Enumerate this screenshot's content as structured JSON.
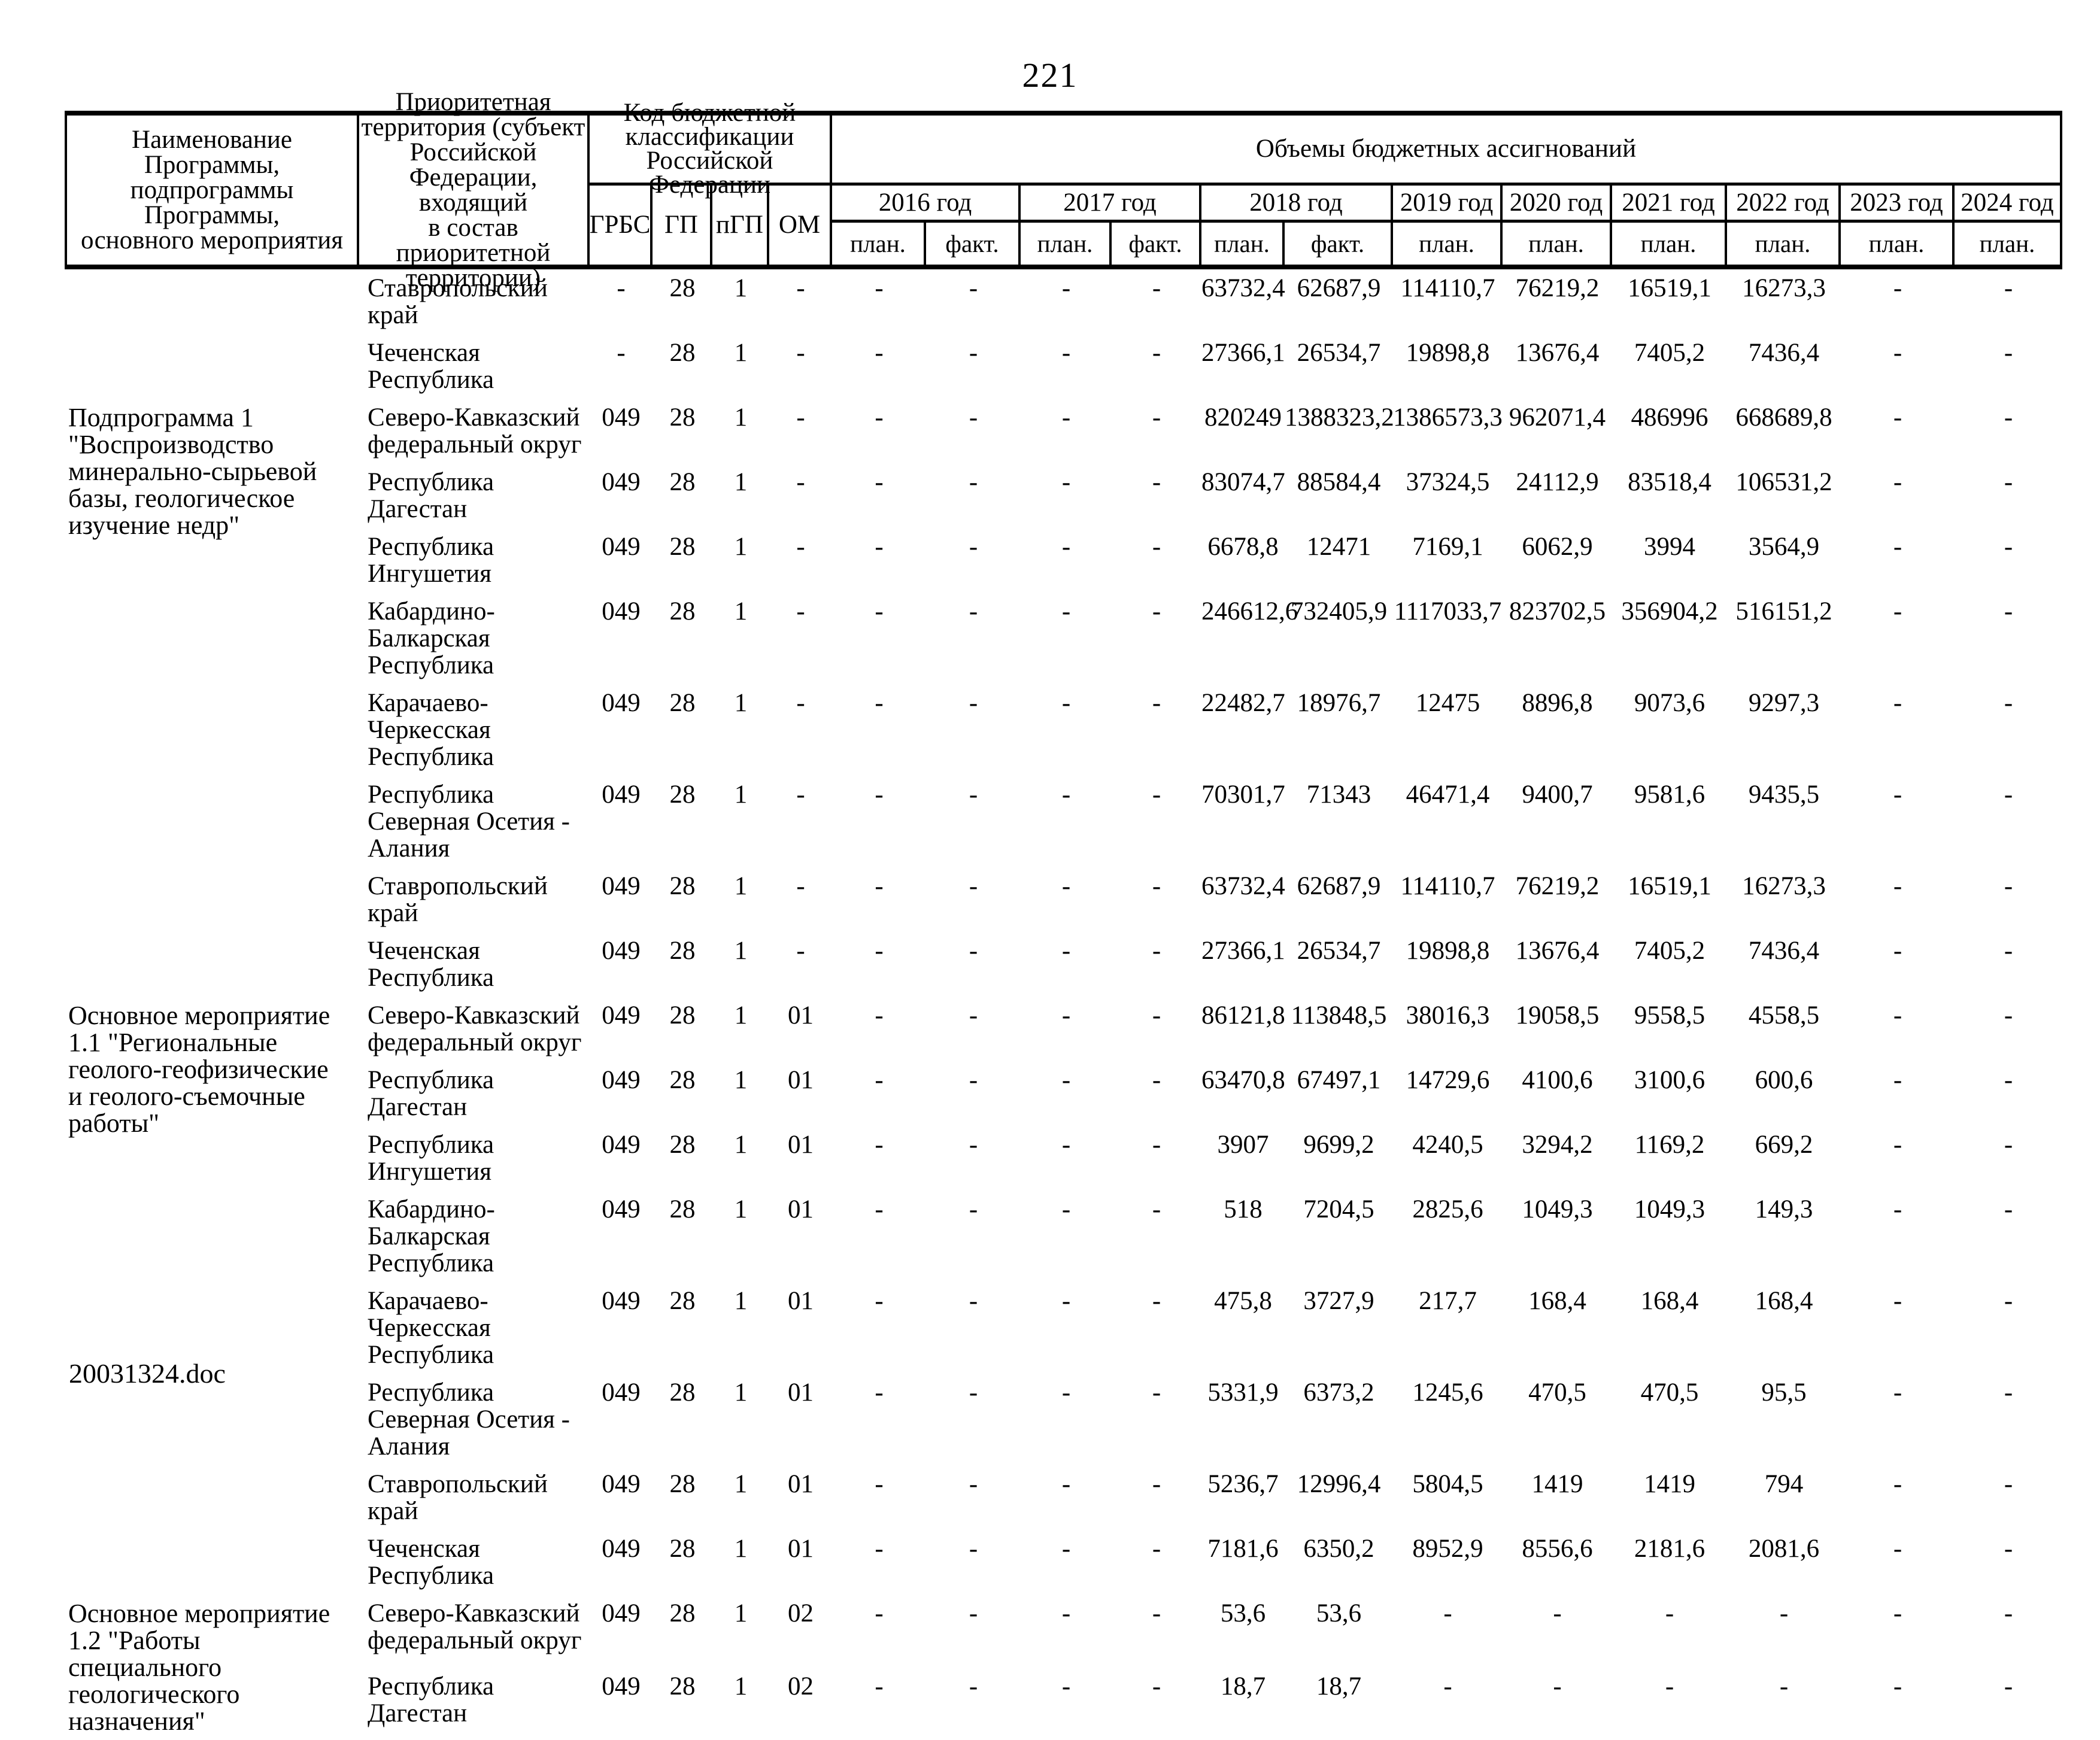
{
  "page": {
    "number": "221",
    "footer_filename": "20031324.doc"
  },
  "table": {
    "headers": {
      "col_name": "Наименование Программы,\nподпрограммы Программы,\nосновного мероприятия",
      "col_territory": "Приоритетная\nтерритория (субъект\nРоссийской Федерации,\nвходящий\nв состав приоритетной\nтерритории)",
      "col_budget_code": "Код бюджетной\nклассификации\nРоссийской Федерации",
      "col_volumes": "Объемы бюджетных ассигнований",
      "code_subcols": [
        "ГРБС",
        "ГП",
        "пГП",
        "ОМ"
      ],
      "years": [
        {
          "label": "2016 год",
          "sub": [
            "план.",
            "факт."
          ]
        },
        {
          "label": "2017 год",
          "sub": [
            "план.",
            "факт."
          ]
        },
        {
          "label": "2018 год",
          "sub": [
            "план.",
            "факт."
          ]
        },
        {
          "label": "2019 год",
          "sub": [
            "план."
          ]
        },
        {
          "label": "2020 год",
          "sub": [
            "план."
          ]
        },
        {
          "label": "2021 год",
          "sub": [
            "план."
          ]
        },
        {
          "label": "2022 год",
          "sub": [
            "план."
          ]
        },
        {
          "label": "2023 год",
          "sub": [
            "план."
          ]
        },
        {
          "label": "2024 год",
          "sub": [
            "план."
          ]
        }
      ]
    },
    "groups": [
      {
        "program": "",
        "rows": [
          {
            "territory": "Ставропольский край",
            "codes": [
              "-",
              "28",
              "1",
              "-"
            ],
            "values": [
              "-",
              "-",
              "-",
              "-",
              "63732,4",
              "62687,9",
              "114110,7",
              "76219,2",
              "16519,1",
              "16273,3",
              "-",
              "-"
            ]
          },
          {
            "territory": "Чеченская Республика",
            "codes": [
              "-",
              "28",
              "1",
              "-"
            ],
            "values": [
              "-",
              "-",
              "-",
              "-",
              "27366,1",
              "26534,7",
              "19898,8",
              "13676,4",
              "7405,2",
              "7436,4",
              "-",
              "-"
            ]
          }
        ]
      },
      {
        "program": "Подпрограмма 1 \"Воспроизводство минерально-сырьевой базы, геологическое изучение недр\"",
        "rows": [
          {
            "territory": "Северо-Кавказский федеральный округ",
            "codes": [
              "049",
              "28",
              "1",
              "-"
            ],
            "values": [
              "-",
              "-",
              "-",
              "-",
              "820249",
              "1388323,2",
              "1386573,3",
              "962071,4",
              "486996",
              "668689,8",
              "-",
              "-"
            ]
          },
          {
            "territory": "Республика Дагестан",
            "codes": [
              "049",
              "28",
              "1",
              "-"
            ],
            "values": [
              "-",
              "-",
              "-",
              "-",
              "83074,7",
              "88584,4",
              "37324,5",
              "24112,9",
              "83518,4",
              "106531,2",
              "-",
              "-"
            ]
          },
          {
            "territory": "Республика Ингушетия",
            "codes": [
              "049",
              "28",
              "1",
              "-"
            ],
            "values": [
              "-",
              "-",
              "-",
              "-",
              "6678,8",
              "12471",
              "7169,1",
              "6062,9",
              "3994",
              "3564,9",
              "-",
              "-"
            ]
          },
          {
            "territory": "Кабардино-Балкарская Республика",
            "codes": [
              "049",
              "28",
              "1",
              "-"
            ],
            "values": [
              "-",
              "-",
              "-",
              "-",
              "246612,6",
              "732405,9",
              "1117033,7",
              "823702,5",
              "356904,2",
              "516151,2",
              "-",
              "-"
            ]
          },
          {
            "territory": "Карачаево-Черкесская Республика",
            "codes": [
              "049",
              "28",
              "1",
              "-"
            ],
            "values": [
              "-",
              "-",
              "-",
              "-",
              "22482,7",
              "18976,7",
              "12475",
              "8896,8",
              "9073,6",
              "9297,3",
              "-",
              "-"
            ]
          },
          {
            "territory": "Республика Северная Осетия - Алания",
            "codes": [
              "049",
              "28",
              "1",
              "-"
            ],
            "values": [
              "-",
              "-",
              "-",
              "-",
              "70301,7",
              "71343",
              "46471,4",
              "9400,7",
              "9581,6",
              "9435,5",
              "-",
              "-"
            ]
          },
          {
            "territory": "Ставропольский край",
            "codes": [
              "049",
              "28",
              "1",
              "-"
            ],
            "values": [
              "-",
              "-",
              "-",
              "-",
              "63732,4",
              "62687,9",
              "114110,7",
              "76219,2",
              "16519,1",
              "16273,3",
              "-",
              "-"
            ]
          },
          {
            "territory": "Чеченская Республика",
            "codes": [
              "049",
              "28",
              "1",
              "-"
            ],
            "values": [
              "-",
              "-",
              "-",
              "-",
              "27366,1",
              "26534,7",
              "19898,8",
              "13676,4",
              "7405,2",
              "7436,4",
              "-",
              "-"
            ]
          }
        ]
      },
      {
        "program": "Основное мероприятие 1.1 \"Региональные геолого-геофизические и геолого-съемочные работы\"",
        "rows": [
          {
            "territory": "Северо-Кавказский федеральный округ",
            "codes": [
              "049",
              "28",
              "1",
              "01"
            ],
            "values": [
              "-",
              "-",
              "-",
              "-",
              "86121,8",
              "113848,5",
              "38016,3",
              "19058,5",
              "9558,5",
              "4558,5",
              "-",
              "-"
            ]
          },
          {
            "territory": "Республика Дагестан",
            "codes": [
              "049",
              "28",
              "1",
              "01"
            ],
            "values": [
              "-",
              "-",
              "-",
              "-",
              "63470,8",
              "67497,1",
              "14729,6",
              "4100,6",
              "3100,6",
              "600,6",
              "-",
              "-"
            ]
          },
          {
            "territory": "Республика Ингушетия",
            "codes": [
              "049",
              "28",
              "1",
              "01"
            ],
            "values": [
              "-",
              "-",
              "-",
              "-",
              "3907",
              "9699,2",
              "4240,5",
              "3294,2",
              "1169,2",
              "669,2",
              "-",
              "-"
            ]
          },
          {
            "territory": "Кабардино-Балкарская Республика",
            "codes": [
              "049",
              "28",
              "1",
              "01"
            ],
            "values": [
              "-",
              "-",
              "-",
              "-",
              "518",
              "7204,5",
              "2825,6",
              "1049,3",
              "1049,3",
              "149,3",
              "-",
              "-"
            ]
          },
          {
            "territory": "Карачаево-Черкесская Республика",
            "codes": [
              "049",
              "28",
              "1",
              "01"
            ],
            "values": [
              "-",
              "-",
              "-",
              "-",
              "475,8",
              "3727,9",
              "217,7",
              "168,4",
              "168,4",
              "168,4",
              "-",
              "-"
            ]
          },
          {
            "territory": "Республика Северная Осетия - Алания",
            "codes": [
              "049",
              "28",
              "1",
              "01"
            ],
            "values": [
              "-",
              "-",
              "-",
              "-",
              "5331,9",
              "6373,2",
              "1245,6",
              "470,5",
              "470,5",
              "95,5",
              "-",
              "-"
            ]
          },
          {
            "territory": "Ставропольский край",
            "codes": [
              "049",
              "28",
              "1",
              "01"
            ],
            "values": [
              "-",
              "-",
              "-",
              "-",
              "5236,7",
              "12996,4",
              "5804,5",
              "1419",
              "1419",
              "794",
              "-",
              "-"
            ]
          },
          {
            "territory": "Чеченская Республика",
            "codes": [
              "049",
              "28",
              "1",
              "01"
            ],
            "values": [
              "-",
              "-",
              "-",
              "-",
              "7181,6",
              "6350,2",
              "8952,9",
              "8556,6",
              "2181,6",
              "2081,6",
              "-",
              "-"
            ]
          }
        ]
      },
      {
        "program": "Основное мероприятие 1.2 \"Работы специального геологического назначения\"",
        "rows": [
          {
            "territory": "Северо-Кавказский федеральный округ",
            "codes": [
              "049",
              "28",
              "1",
              "02"
            ],
            "values": [
              "-",
              "-",
              "-",
              "-",
              "53,6",
              "53,6",
              "-",
              "-",
              "-",
              "-",
              "-",
              "-"
            ]
          },
          {
            "territory": "Республика Дагестан",
            "codes": [
              "049",
              "28",
              "1",
              "02"
            ],
            "values": [
              "-",
              "-",
              "-",
              "-",
              "18,7",
              "18,7",
              "-",
              "-",
              "-",
              "-",
              "-",
              "-"
            ]
          }
        ]
      }
    ]
  }
}
